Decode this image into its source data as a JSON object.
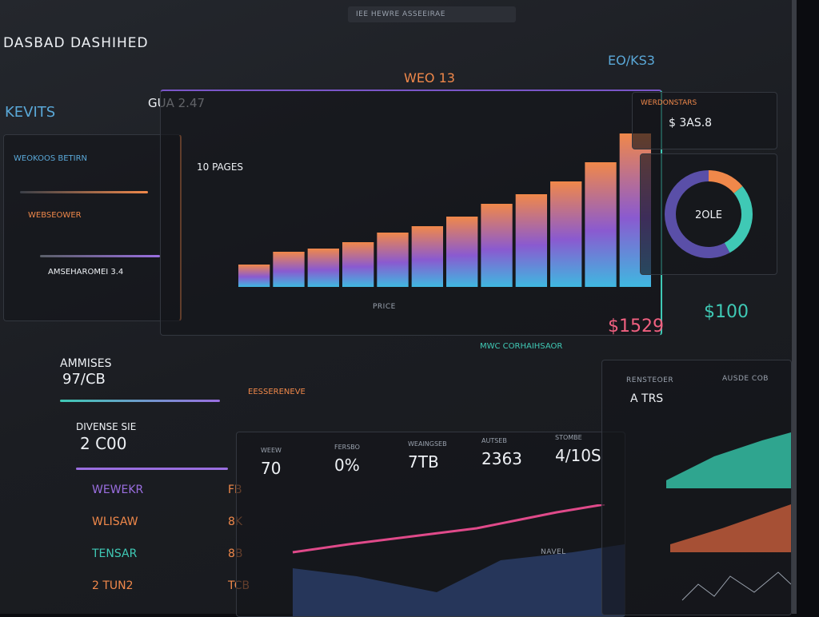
{
  "header": {
    "title": "DASBAD DASHIHED",
    "search": "IEE HEWRE ASSEEIRAE"
  },
  "top": {
    "center": "WEO 13",
    "right": "EO/KS3"
  },
  "left": {
    "title": "KEVITS",
    "panel_title": "WEOKOOS BETIRN",
    "panel_sub": "WEBSEOWER",
    "panel_note": "AMSEHAROMEI 3.4",
    "metric_label": "AMMISES",
    "metric_value": "97/CB",
    "metric2_label": "DIVENSE SIE",
    "metric2_value": "2 C00",
    "list": [
      "WEWEKR",
      "WLISAW",
      "TENSAR",
      "2 TUN2"
    ],
    "list_values": [
      "FB",
      "8K",
      "8B",
      "TCB"
    ]
  },
  "main_chart": {
    "type": "bar",
    "label": "GUA 2.47",
    "title": "10 PAGES",
    "footer": "PRICE",
    "values": [
      14,
      22,
      24,
      28,
      34,
      38,
      44,
      52,
      58,
      66,
      78,
      96
    ],
    "color": "#f0884a",
    "ylim": [
      0,
      100
    ]
  },
  "side": {
    "card_title": "WERDONSTARS",
    "card_value": "$ 3AS.8",
    "donut": {
      "type": "pie",
      "center": "2OLE",
      "values": [
        14,
        28,
        58
      ],
      "colors": [
        "#f0884a",
        "#3fc9b5",
        "#5a4fa8"
      ]
    }
  },
  "stats": {
    "value1": "$1529",
    "value2": "$100",
    "label": "MWC CORHAIHSAOR"
  },
  "tiles": {
    "header": "EESSERENEVE",
    "items": [
      {
        "label": "WEEW",
        "value": "70"
      },
      {
        "label": "FERSBO",
        "value": "0%"
      },
      {
        "label": "WEAINGSEB",
        "value": "7TB"
      },
      {
        "label": "AUTSEB",
        "value": "2363"
      },
      {
        "label": "STOMBE",
        "value": "4/10S"
      }
    ],
    "footer": "NAVEL"
  },
  "right_panel": {
    "label": "RENSTEOER",
    "value": "A TRS",
    "note": "AUSDE COB"
  }
}
